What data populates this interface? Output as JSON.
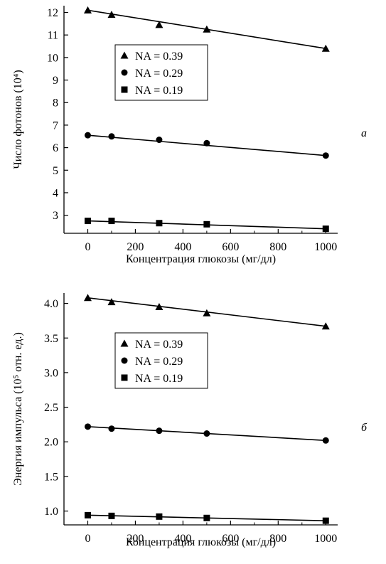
{
  "chart_data": [
    {
      "type": "line",
      "panel_label": "а",
      "xlabel": "Концентрация глюкозы (мг/дл)",
      "ylabel": "Число фотонов (10⁴)",
      "xlim": [
        -100,
        1050
      ],
      "ylim": [
        2.2,
        12.3
      ],
      "x_ticks": [
        0,
        200,
        400,
        600,
        800,
        1000
      ],
      "y_ticks": [
        3,
        4,
        5,
        6,
        7,
        8,
        9,
        10,
        11,
        12
      ],
      "legend_position": "upper-left",
      "series": [
        {
          "name": "NA = 0.39",
          "marker": "triangle",
          "x": [
            0,
            100,
            300,
            500,
            1000
          ],
          "y": [
            12.1,
            11.9,
            11.45,
            11.25,
            10.4
          ]
        },
        {
          "name": "NA = 0.29",
          "marker": "circle",
          "x": [
            0,
            100,
            300,
            500,
            1000
          ],
          "y": [
            6.55,
            6.5,
            6.35,
            6.2,
            5.65
          ]
        },
        {
          "name": "NA = 0.19",
          "marker": "square",
          "x": [
            0,
            100,
            300,
            500,
            1000
          ],
          "y": [
            2.75,
            2.75,
            2.65,
            2.6,
            2.4
          ]
        }
      ]
    },
    {
      "type": "line",
      "panel_label": "б",
      "xlabel": "Концентрация глюкозы (мг/дл)",
      "ylabel": "Энергия импульса (10⁵ отн. ед.)",
      "xlim": [
        -100,
        1050
      ],
      "ylim": [
        0.8,
        4.15
      ],
      "x_ticks": [
        0,
        200,
        400,
        600,
        800,
        1000
      ],
      "y_ticks": [
        "1.0",
        "1.5",
        "2.0",
        "2.5",
        "3.0",
        "3.5",
        "4.0"
      ],
      "legend_position": "upper-left",
      "series": [
        {
          "name": "NA = 0.39",
          "marker": "triangle",
          "x": [
            0,
            100,
            300,
            500,
            1000
          ],
          "y": [
            4.08,
            4.02,
            3.95,
            3.86,
            3.67
          ]
        },
        {
          "name": "NA = 0.29",
          "marker": "circle",
          "x": [
            0,
            100,
            300,
            500,
            1000
          ],
          "y": [
            2.22,
            2.19,
            2.16,
            2.12,
            2.02
          ]
        },
        {
          "name": "NA = 0.19",
          "marker": "square",
          "x": [
            0,
            100,
            300,
            500,
            1000
          ],
          "y": [
            0.94,
            0.93,
            0.92,
            0.9,
            0.86
          ]
        }
      ]
    }
  ]
}
